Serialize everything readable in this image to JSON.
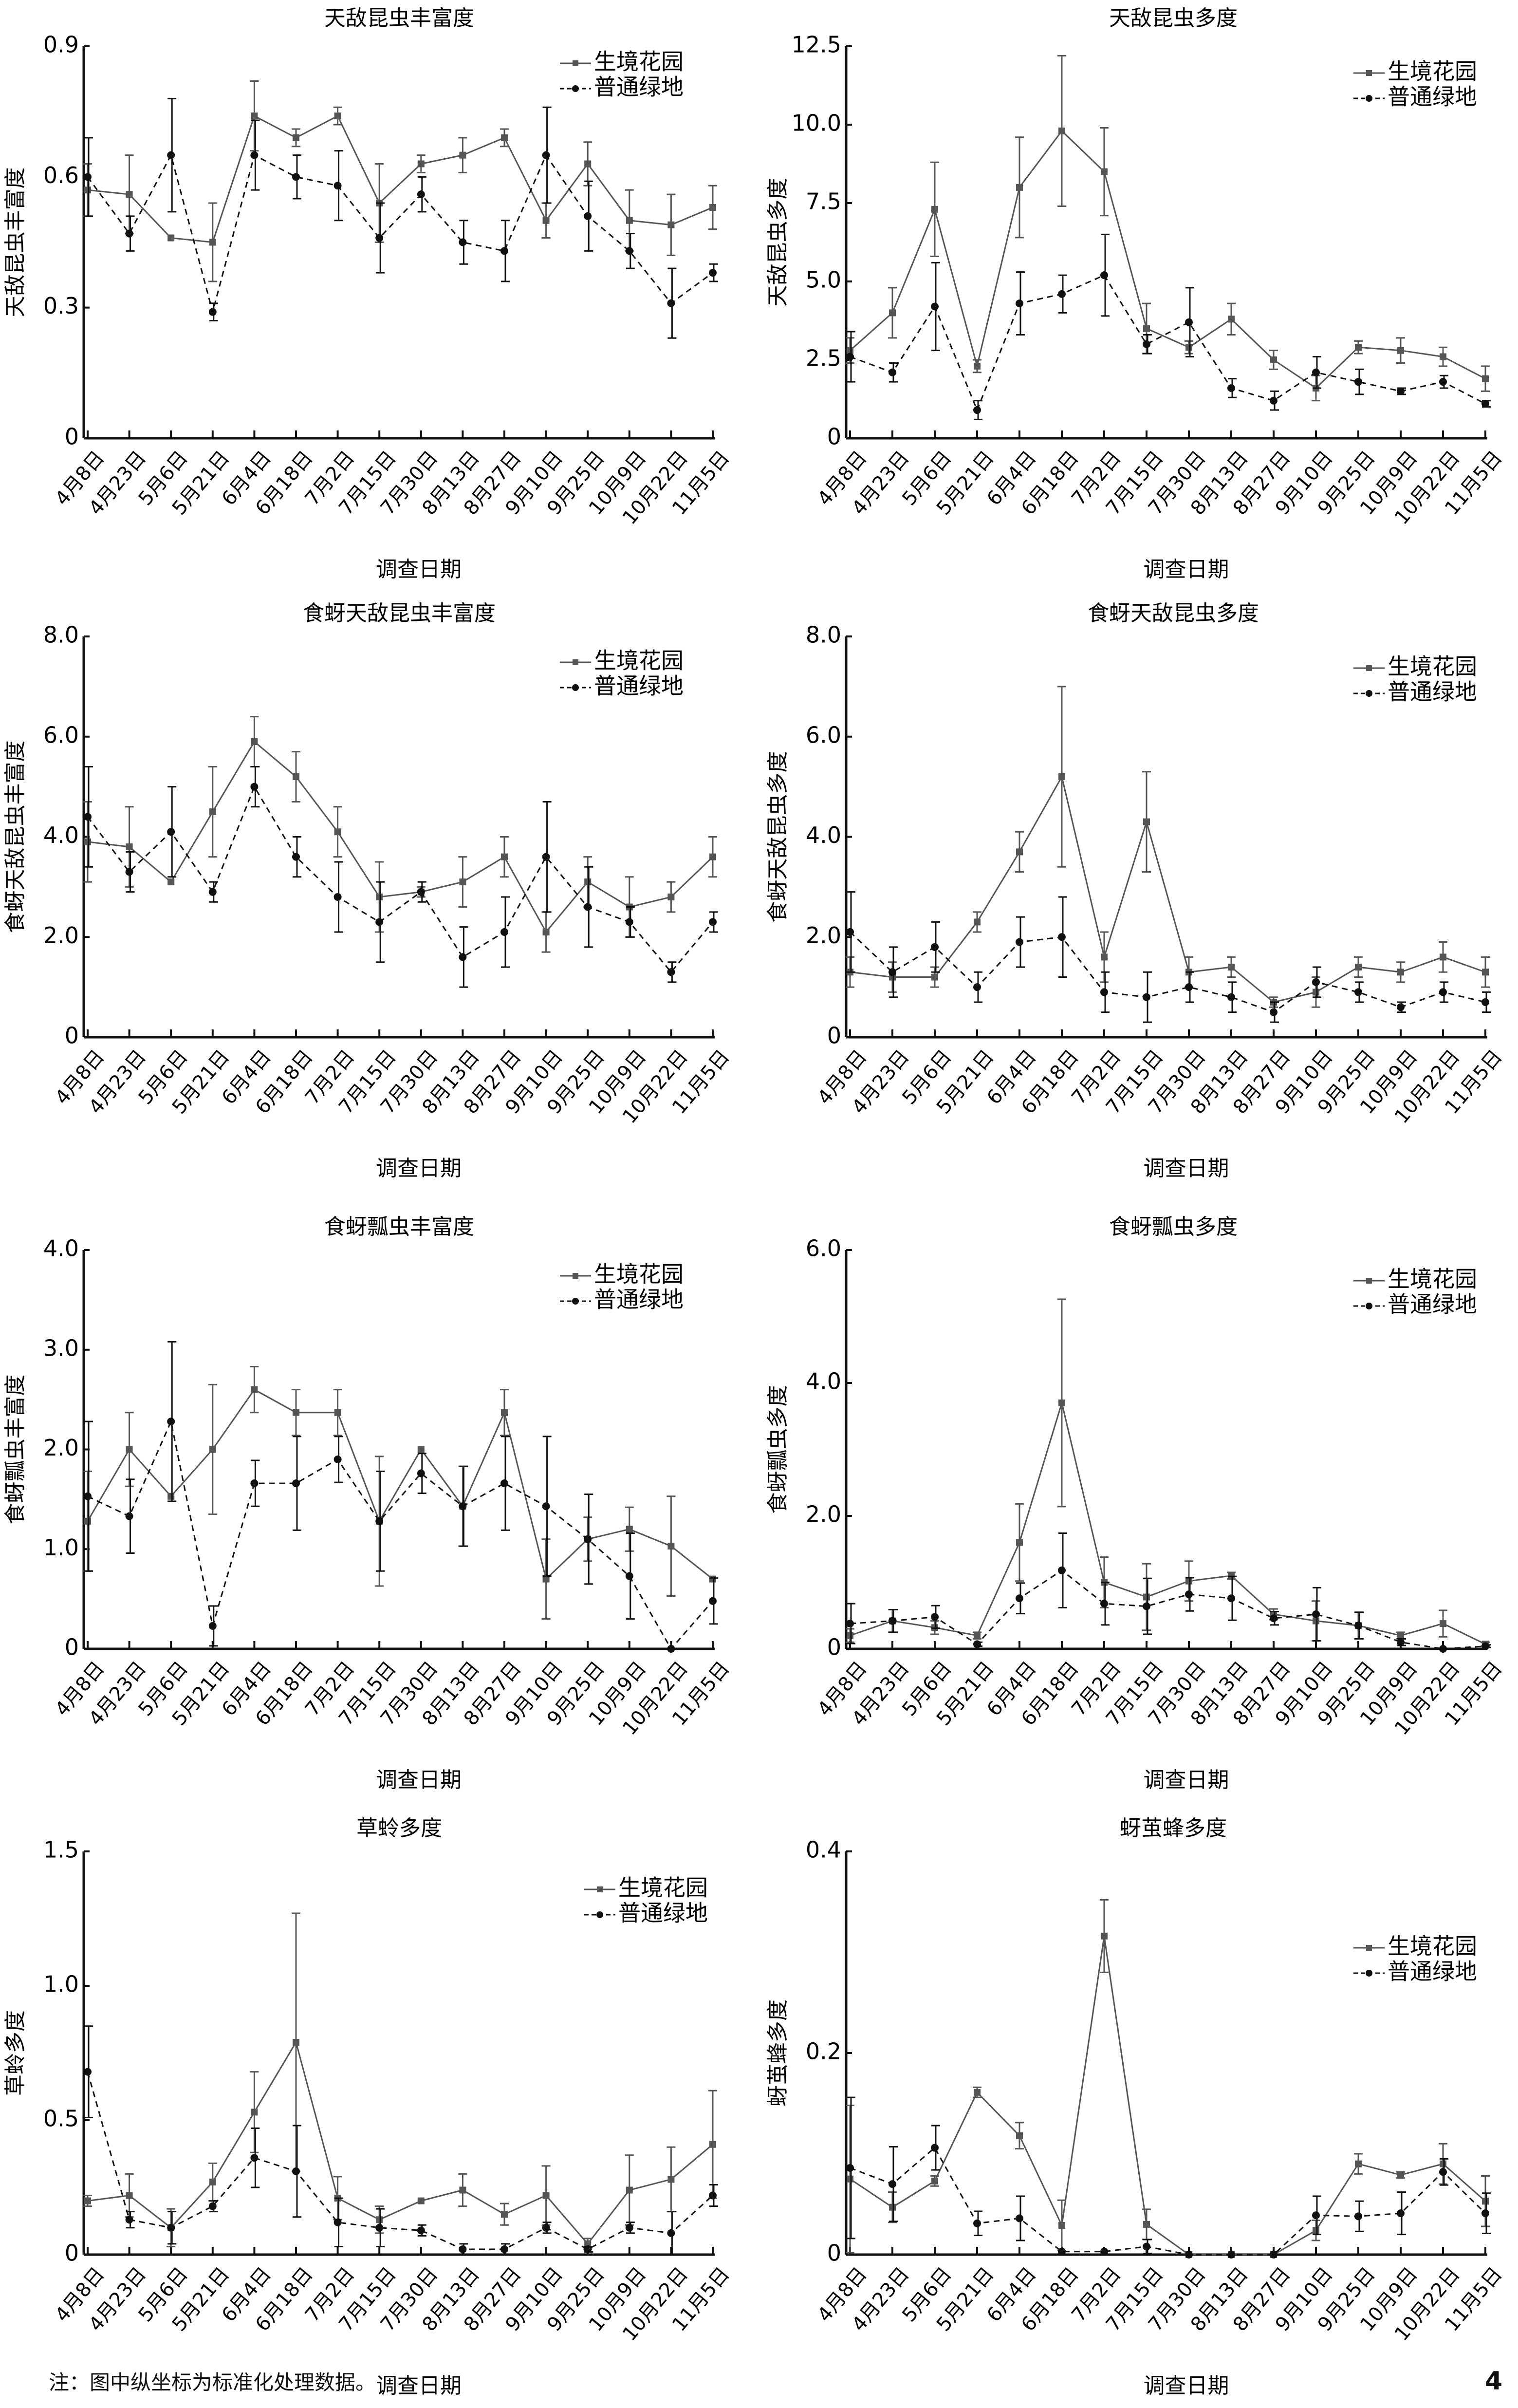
{
  "note": "注：图中纵坐标为标准化处理数据。",
  "page_number": "4",
  "legend": [
    "生境花园",
    "普通绿地"
  ],
  "colors": {
    "garden": "#555555",
    "green": "#111111"
  },
  "chart_data": [
    {
      "type": "line",
      "title": "天敌昆虫丰富度",
      "xlabel": "调查日期",
      "ylabel": "天敌昆虫丰富度",
      "ylim": [
        0,
        0.9
      ],
      "yticks": [
        "0",
        "0.3",
        "0.6",
        "0.9"
      ],
      "ytick_values": [
        0,
        0.3,
        0.6,
        0.9
      ],
      "categories": [
        "4月8日",
        "4月23日",
        "5月6日",
        "5月21日",
        "6月4日",
        "6月18日",
        "7月2日",
        "7月15日",
        "7月30日",
        "8月13日",
        "8月27日",
        "9月10日",
        "9月25日",
        "10月9日",
        "10月22日",
        "11月5日"
      ],
      "legend_position": "top-right",
      "series": [
        {
          "name": "生境花园",
          "values": [
            0.57,
            0.56,
            0.46,
            0.45,
            0.74,
            0.69,
            0.74,
            0.54,
            0.63,
            0.65,
            0.69,
            0.5,
            0.63,
            0.5,
            0.49,
            0.53
          ],
          "errors": [
            0.06,
            0.09,
            0.0,
            0.09,
            0.08,
            0.02,
            0.02,
            0.09,
            0.02,
            0.04,
            0.02,
            0.04,
            0.05,
            0.07,
            0.07,
            0.05
          ]
        },
        {
          "name": "普通绿地",
          "values": [
            0.6,
            0.47,
            0.65,
            0.29,
            0.65,
            0.6,
            0.58,
            0.46,
            0.56,
            0.45,
            0.43,
            0.65,
            0.51,
            0.43,
            0.31,
            0.38
          ],
          "errors": [
            0.09,
            0.04,
            0.13,
            0.02,
            0.08,
            0.05,
            0.08,
            0.08,
            0.04,
            0.05,
            0.07,
            0.11,
            0.08,
            0.04,
            0.08,
            0.02
          ]
        }
      ]
    },
    {
      "type": "line",
      "title": "天敌昆虫多度",
      "xlabel": "调查日期",
      "ylabel": "天敌昆虫多度",
      "ylim": [
        0,
        12.5
      ],
      "yticks": [
        "0",
        "2.5",
        "5.0",
        "7.5",
        "10.0",
        "12.5"
      ],
      "ytick_values": [
        0,
        2.5,
        5,
        7.5,
        10,
        12.5
      ],
      "categories": [
        "4月8日",
        "4月23日",
        "5月6日",
        "5月21日",
        "6月4日",
        "6月18日",
        "7月2日",
        "7月15日",
        "7月30日",
        "8月13日",
        "8月27日",
        "9月10日",
        "9月25日",
        "10月9日",
        "10月22日",
        "11月5日"
      ],
      "legend_position": "top-right",
      "series": [
        {
          "name": "生境花园",
          "values": [
            2.8,
            4.0,
            7.3,
            2.3,
            8.0,
            9.8,
            8.5,
            3.5,
            2.9,
            3.8,
            2.5,
            1.6,
            2.9,
            2.8,
            2.6,
            1.9
          ],
          "errors": [
            0.4,
            0.8,
            1.5,
            0.2,
            1.6,
            2.4,
            1.4,
            0.8,
            0.2,
            0.5,
            0.3,
            0.4,
            0.2,
            0.4,
            0.3,
            0.4
          ]
        },
        {
          "name": "普通绿地",
          "values": [
            2.6,
            2.1,
            4.2,
            0.9,
            4.3,
            4.6,
            5.2,
            3.0,
            3.7,
            1.6,
            1.2,
            2.1,
            1.8,
            1.5,
            1.8,
            1.1
          ],
          "errors": [
            0.8,
            0.3,
            1.4,
            0.3,
            1.0,
            0.6,
            1.3,
            0.3,
            1.1,
            0.3,
            0.3,
            0.5,
            0.4,
            0.1,
            0.2,
            0.1
          ]
        }
      ]
    },
    {
      "type": "line",
      "title": "食蚜天敌昆虫丰富度",
      "xlabel": "调查日期",
      "ylabel": "食蚜天敌昆虫丰富度",
      "ylim": [
        0,
        8.0
      ],
      "yticks": [
        "0",
        "2.0",
        "4.0",
        "6.0",
        "8.0"
      ],
      "ytick_values": [
        0,
        2,
        4,
        6,
        8
      ],
      "categories": [
        "4月8日",
        "4月23日",
        "5月6日",
        "5月21日",
        "6月4日",
        "6月18日",
        "7月2日",
        "7月15日",
        "7月30日",
        "8月13日",
        "8月27日",
        "9月10日",
        "9月25日",
        "10月9日",
        "10月22日",
        "11月5日"
      ],
      "legend_position": "top-right",
      "series": [
        {
          "name": "生境花园",
          "values": [
            3.9,
            3.8,
            3.1,
            4.5,
            5.9,
            5.2,
            4.1,
            2.8,
            2.9,
            3.1,
            3.6,
            2.1,
            3.1,
            2.6,
            2.8,
            3.6
          ],
          "errors": [
            0.8,
            0.8,
            0.0,
            0.9,
            0.5,
            0.5,
            0.5,
            0.7,
            0.1,
            0.5,
            0.4,
            0.4,
            0.5,
            0.6,
            0.3,
            0.4
          ]
        },
        {
          "name": "普通绿地",
          "values": [
            4.4,
            3.3,
            4.1,
            2.9,
            5.0,
            3.6,
            2.8,
            2.3,
            2.9,
            1.6,
            2.1,
            3.6,
            2.6,
            2.3,
            1.3,
            2.3
          ],
          "errors": [
            1.0,
            0.4,
            0.9,
            0.2,
            0.4,
            0.4,
            0.7,
            0.8,
            0.2,
            0.6,
            0.7,
            1.1,
            0.8,
            0.3,
            0.2,
            0.2
          ]
        }
      ]
    },
    {
      "type": "line",
      "title": "食蚜天敌昆虫多度",
      "xlabel": "调查日期",
      "ylabel": "食蚜天敌昆虫多度",
      "ylim": [
        0,
        8.0
      ],
      "yticks": [
        "0",
        "2.0",
        "4.0",
        "6.0",
        "8.0"
      ],
      "ytick_values": [
        0,
        2,
        4,
        6,
        8
      ],
      "categories": [
        "4月8日",
        "4月23日",
        "5月6日",
        "5月21日",
        "6月4日",
        "6月18日",
        "7月2日",
        "7月15日",
        "7月30日",
        "8月13日",
        "8月27日",
        "9月10日",
        "9月25日",
        "10月9日",
        "10月22日",
        "11月5日"
      ],
      "legend_position": "top-right",
      "series": [
        {
          "name": "生境花园",
          "values": [
            1.3,
            1.2,
            1.2,
            2.3,
            3.7,
            5.2,
            1.6,
            4.3,
            1.3,
            1.4,
            0.7,
            0.9,
            1.4,
            1.3,
            1.6,
            1.3
          ],
          "errors": [
            0.3,
            0.3,
            0.2,
            0.2,
            0.4,
            1.8,
            0.5,
            1.0,
            0.3,
            0.2,
            0.1,
            0.3,
            0.2,
            0.2,
            0.3,
            0.3
          ]
        },
        {
          "name": "普通绿地",
          "values": [
            2.1,
            1.3,
            1.8,
            1.0,
            1.9,
            2.0,
            0.9,
            0.8,
            1.0,
            0.8,
            0.5,
            1.1,
            0.9,
            0.6,
            0.9,
            0.7
          ],
          "errors": [
            0.8,
            0.5,
            0.5,
            0.3,
            0.5,
            0.8,
            0.4,
            0.5,
            0.3,
            0.3,
            0.2,
            0.3,
            0.2,
            0.1,
            0.2,
            0.2
          ]
        }
      ]
    },
    {
      "type": "line",
      "title": "食蚜瓢虫丰富度",
      "xlabel": "调查日期",
      "ylabel": "食蚜瓢虫丰富度",
      "ylim": [
        0,
        4.0
      ],
      "yticks": [
        "0",
        "1.0",
        "2.0",
        "3.0",
        "4.0"
      ],
      "ytick_values": [
        0,
        1,
        2,
        3,
        4
      ],
      "categories": [
        "4月8日",
        "4月23日",
        "5月6日",
        "5月21日",
        "6月4日",
        "6月18日",
        "7月2日",
        "7月15日",
        "7月30日",
        "8月13日",
        "8月27日",
        "9月10日",
        "9月25日",
        "10月9日",
        "10月22日",
        "11月5日"
      ],
      "legend_position": "top-right",
      "series": [
        {
          "name": "生境花园",
          "values": [
            1.28,
            2.0,
            1.53,
            2.0,
            2.6,
            2.37,
            2.37,
            1.28,
            2.0,
            1.43,
            2.37,
            0.7,
            1.1,
            1.2,
            1.03,
            0.7
          ],
          "errors": [
            0.5,
            0.37,
            0.0,
            0.65,
            0.23,
            0.23,
            0.23,
            0.65,
            0.0,
            0.4,
            0.23,
            0.4,
            0.22,
            0.22,
            0.5,
            0.0
          ]
        },
        {
          "name": "普通绿地",
          "values": [
            1.53,
            1.33,
            2.28,
            0.23,
            1.66,
            1.66,
            1.9,
            1.28,
            1.76,
            1.43,
            1.66,
            1.43,
            1.1,
            0.73,
            0.0,
            0.48
          ],
          "errors": [
            0.75,
            0.37,
            0.8,
            0.2,
            0.23,
            0.47,
            0.23,
            0.5,
            0.2,
            0.4,
            0.47,
            0.7,
            0.45,
            0.43,
            0.0,
            0.23
          ]
        }
      ]
    },
    {
      "type": "line",
      "title": "食蚜瓢虫多度",
      "xlabel": "调查日期",
      "ylabel": "食蚜瓢虫多度",
      "ylim": [
        0,
        6.0
      ],
      "yticks": [
        "0",
        "2.0",
        "4.0",
        "6.0"
      ],
      "ytick_values": [
        0,
        2,
        4,
        6
      ],
      "categories": [
        "4月8日",
        "4月23日",
        "5月6日",
        "5月21日",
        "6月4日",
        "6月18日",
        "7月2日",
        "7月15日",
        "7月30日",
        "8月13日",
        "8月27日",
        "9月10日",
        "9月25日",
        "10月9日",
        "10月22日",
        "11月5日"
      ],
      "legend_position": "top-right",
      "series": [
        {
          "name": "生境花园",
          "values": [
            0.2,
            0.42,
            0.32,
            0.2,
            1.6,
            3.7,
            1.0,
            0.78,
            1.02,
            1.1,
            0.52,
            0.42,
            0.35,
            0.2,
            0.38,
            0.07
          ],
          "errors": [
            0.1,
            0.17,
            0.1,
            0.05,
            0.58,
            1.56,
            0.38,
            0.5,
            0.3,
            0.05,
            0.08,
            0.3,
            0.2,
            0.05,
            0.2,
            0.03
          ]
        },
        {
          "name": "普通绿地",
          "values": [
            0.38,
            0.42,
            0.48,
            0.07,
            0.76,
            1.18,
            0.68,
            0.64,
            0.82,
            0.76,
            0.46,
            0.52,
            0.35,
            0.1,
            0.0,
            0.04
          ],
          "errors": [
            0.3,
            0.17,
            0.17,
            0.03,
            0.23,
            0.56,
            0.32,
            0.42,
            0.25,
            0.33,
            0.1,
            0.4,
            0.2,
            0.05,
            0.0,
            0.02
          ]
        }
      ]
    },
    {
      "type": "line",
      "title": "草蛉多度",
      "xlabel": "调查日期",
      "ylabel": "草蛉多度",
      "ylim": [
        0,
        1.5
      ],
      "yticks": [
        "0",
        "0.5",
        "1.0",
        "1.5"
      ],
      "ytick_values": [
        0,
        0.5,
        1.0,
        1.5
      ],
      "categories": [
        "4月8日",
        "4月23日",
        "5月6日",
        "5月21日",
        "6月4日",
        "6月18日",
        "7月2日",
        "7月15日",
        "7月30日",
        "8月13日",
        "8月27日",
        "9月10日",
        "9月25日",
        "10月9日",
        "10月22日",
        "11月5日"
      ],
      "legend_position": "top-right",
      "series": [
        {
          "name": "生境花园",
          "values": [
            0.2,
            0.22,
            0.1,
            0.27,
            0.53,
            0.79,
            0.21,
            0.13,
            0.2,
            0.24,
            0.15,
            0.22,
            0.04,
            0.24,
            0.28,
            0.41
          ],
          "errors": [
            0.02,
            0.08,
            0.07,
            0.07,
            0.15,
            0.48,
            0.08,
            0.05,
            0.0,
            0.06,
            0.04,
            0.11,
            0.02,
            0.13,
            0.12,
            0.2
          ]
        },
        {
          "name": "普通绿地",
          "values": [
            0.68,
            0.13,
            0.1,
            0.18,
            0.36,
            0.31,
            0.12,
            0.1,
            0.09,
            0.02,
            0.02,
            0.1,
            0.02,
            0.1,
            0.08,
            0.22
          ],
          "errors": [
            0.17,
            0.03,
            0.06,
            0.02,
            0.11,
            0.17,
            0.09,
            0.07,
            0.02,
            0.02,
            0.02,
            0.02,
            0.01,
            0.02,
            0.08,
            0.04
          ]
        }
      ]
    },
    {
      "type": "line",
      "title": "蚜茧蜂多度",
      "xlabel": "调查日期",
      "ylabel": "蚜茧蜂多度",
      "ylim": [
        0,
        0.4
      ],
      "yticks": [
        "0",
        "0.2",
        "0.4"
      ],
      "ytick_values": [
        0,
        0.2,
        0.4
      ],
      "categories": [
        "4月8日",
        "4月23日",
        "5月6日",
        "5月21日",
        "6月4日",
        "6月18日",
        "7月2日",
        "7月15日",
        "7月30日",
        "8月13日",
        "8月27日",
        "9月10日",
        "9月25日",
        "10月9日",
        "10月22日",
        "11月5日"
      ],
      "legend_position": "top-right",
      "series": [
        {
          "name": "生境花园",
          "values": [
            0.075,
            0.047,
            0.073,
            0.161,
            0.118,
            0.029,
            0.316,
            0.03,
            0.0,
            0.0,
            0.0,
            0.024,
            0.09,
            0.079,
            0.09,
            0.053
          ],
          "errors": [
            0.073,
            0.015,
            0.005,
            0.005,
            0.013,
            0.025,
            0.036,
            0.015,
            0.0,
            0.0,
            0.0,
            0.01,
            0.01,
            0.003,
            0.02,
            0.025
          ]
        },
        {
          "name": "普通绿地",
          "values": [
            0.086,
            0.07,
            0.106,
            0.031,
            0.036,
            0.003,
            0.003,
            0.008,
            0.0,
            0.0,
            0.0,
            0.039,
            0.038,
            0.041,
            0.082,
            0.041
          ],
          "errors": [
            0.07,
            0.037,
            0.022,
            0.012,
            0.022,
            0.0,
            0.0,
            0.007,
            0.0,
            0.0,
            0.0,
            0.019,
            0.015,
            0.021,
            0.013,
            0.02
          ]
        }
      ]
    }
  ]
}
